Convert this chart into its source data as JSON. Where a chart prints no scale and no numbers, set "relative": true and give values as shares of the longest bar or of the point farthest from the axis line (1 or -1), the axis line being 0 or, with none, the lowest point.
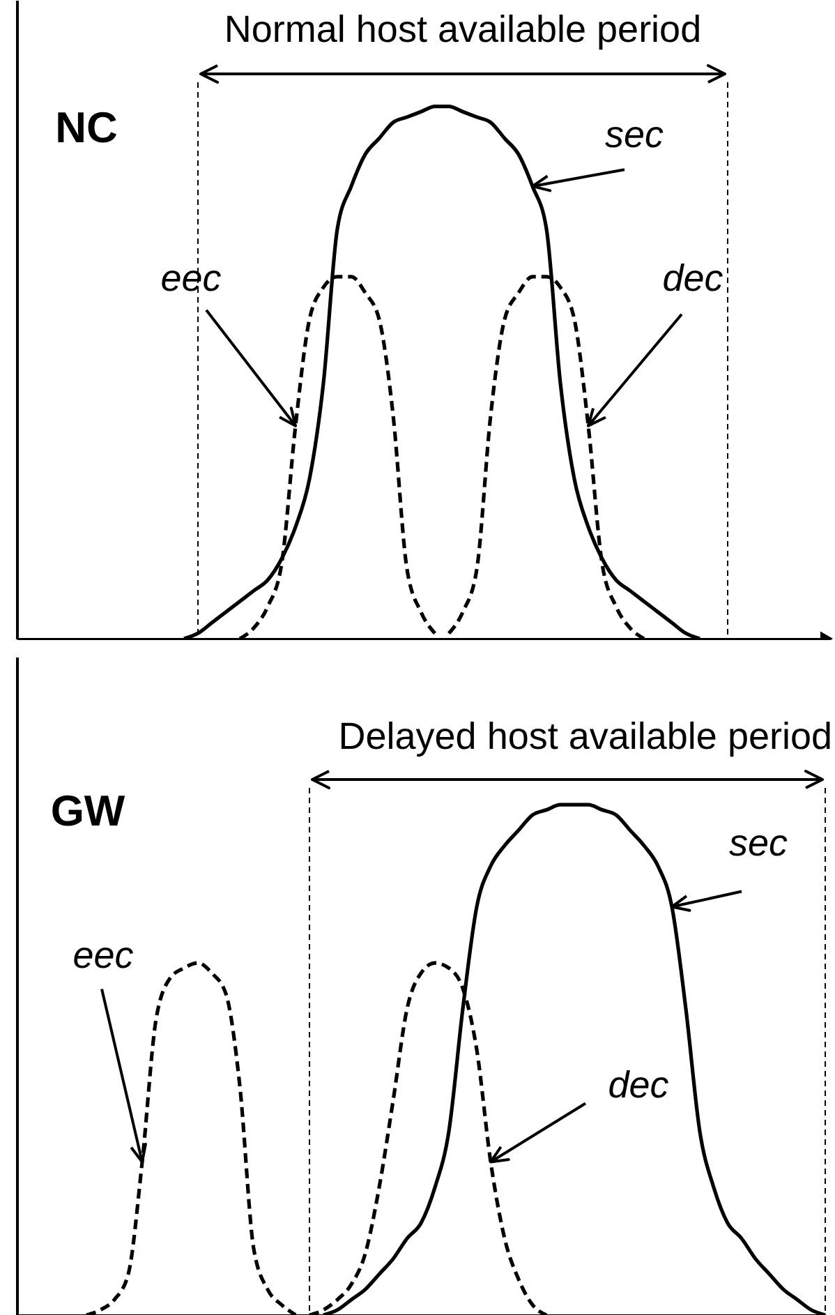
{
  "chart_data": [
    {
      "type": "line",
      "title": "NC",
      "relative": true,
      "categories": [
        null,
        null,
        null,
        null,
        null,
        null,
        null,
        null,
        null,
        null,
        null,
        null,
        null,
        null,
        null,
        null,
        null,
        null,
        null,
        null,
        null,
        null,
        null,
        null,
        null,
        null,
        null,
        null,
        null,
        null,
        null,
        null,
        null,
        null,
        null,
        null,
        null,
        null,
        null,
        null,
        null,
        null,
        null,
        null,
        null,
        null,
        null,
        null,
        null,
        null,
        null,
        null,
        null,
        null,
        null,
        null,
        null,
        null,
        null
      ],
      "series": [
        {
          "name": "sec",
          "color": "#000000",
          "line_style": "solid",
          "values": [
            null,
            null,
            null,
            null,
            null,
            null,
            null,
            null,
            null,
            null,
            null,
            null,
            0,
            0.01,
            0.03,
            0.05,
            0.07,
            0.09,
            0.11,
            0.15,
            0.21,
            0.3,
            0.48,
            0.77,
            0.85,
            0.91,
            0.94,
            0.97,
            0.98,
            0.99,
            1,
            1,
            0.99,
            0.98,
            0.97,
            0.94,
            0.91,
            0.85,
            0.77,
            0.48,
            0.3,
            0.21,
            0.15,
            0.11,
            0.09,
            0.07,
            0.05,
            0.03,
            0.01,
            0,
            null,
            null,
            null,
            null,
            null,
            null,
            null,
            null,
            null
          ]
        },
        {
          "name": "eec",
          "color": "#000000",
          "line_style": "dashed",
          "values": [
            null,
            null,
            null,
            null,
            null,
            null,
            null,
            null,
            null,
            null,
            null,
            null,
            null,
            null,
            null,
            null,
            0,
            0.02,
            0.06,
            0.14,
            0.4,
            0.6,
            0.66,
            0.68,
            0.68,
            0.65,
            0.6,
            0.42,
            0.13,
            0.05,
            0.01,
            null,
            null,
            null,
            null,
            null,
            null,
            null,
            null,
            null,
            null,
            null,
            null,
            null,
            null,
            null,
            null,
            null,
            null,
            null,
            null,
            null,
            null,
            null,
            null,
            null,
            null,
            null,
            null
          ]
        },
        {
          "name": "dec",
          "color": "#000000",
          "line_style": "dashed",
          "values": [
            null,
            null,
            null,
            null,
            null,
            null,
            null,
            null,
            null,
            null,
            null,
            null,
            null,
            null,
            null,
            null,
            null,
            null,
            null,
            null,
            null,
            null,
            null,
            null,
            null,
            null,
            null,
            null,
            null,
            null,
            null,
            0.01,
            0.05,
            0.13,
            0.42,
            0.6,
            0.65,
            0.68,
            0.68,
            0.66,
            0.6,
            0.4,
            0.14,
            0.06,
            0.02,
            0,
            null,
            null,
            null,
            null,
            null,
            null,
            null,
            null,
            null,
            null,
            null,
            null,
            null
          ]
        }
      ],
      "annotations": [
        "Normal host available period"
      ]
    },
    {
      "type": "line",
      "title": "GW",
      "relative": true,
      "categories": [
        null,
        null,
        null,
        null,
        null,
        null,
        null,
        null,
        null,
        null,
        null,
        null,
        null,
        null,
        null,
        null,
        null,
        null,
        null,
        null,
        null,
        null,
        null,
        null,
        null,
        null,
        null,
        null,
        null,
        null,
        null,
        null,
        null,
        null,
        null,
        null,
        null,
        null,
        null,
        null,
        null,
        null,
        null,
        null,
        null,
        null,
        null,
        null,
        null,
        null,
        null,
        null,
        null,
        null,
        null,
        null,
        null,
        null,
        null
      ],
      "series": [
        {
          "name": "eec",
          "color": "#000000",
          "line_style": "dashed",
          "values": [
            null,
            null,
            null,
            null,
            null,
            0,
            0.01,
            0.03,
            0.08,
            0.3,
            0.58,
            0.66,
            0.68,
            0.69,
            0.67,
            0.63,
            0.45,
            0.13,
            0.05,
            0.02,
            0,
            null,
            null,
            null,
            null,
            null,
            null,
            null,
            null,
            null,
            null,
            null,
            null,
            null,
            null,
            null,
            null,
            null,
            null,
            null,
            null,
            null,
            null,
            null,
            null,
            null,
            null,
            null,
            null,
            null,
            null,
            null,
            null,
            null,
            null,
            null,
            null,
            null,
            null
          ]
        },
        {
          "name": "dec",
          "color": "#000000",
          "line_style": "dashed",
          "values": [
            null,
            null,
            null,
            null,
            null,
            null,
            null,
            null,
            null,
            null,
            null,
            null,
            null,
            null,
            null,
            null,
            null,
            null,
            null,
            null,
            null,
            0,
            0.01,
            0.03,
            0.06,
            0.12,
            0.25,
            0.42,
            0.6,
            0.67,
            0.69,
            0.68,
            0.64,
            0.52,
            0.3,
            0.15,
            0.07,
            0.02,
            0,
            null,
            null,
            null,
            null,
            null,
            null,
            null,
            null,
            null,
            null,
            null,
            null,
            null,
            null,
            null,
            null,
            null,
            null,
            null,
            null
          ]
        },
        {
          "name": "sec",
          "color": "#000000",
          "line_style": "solid",
          "values": [
            null,
            null,
            null,
            null,
            null,
            null,
            null,
            null,
            null,
            null,
            null,
            null,
            null,
            null,
            null,
            null,
            null,
            null,
            null,
            null,
            null,
            null,
            0,
            0.01,
            0.03,
            0.05,
            0.08,
            0.11,
            0.15,
            0.18,
            0.25,
            0.36,
            0.6,
            0.8,
            0.88,
            0.92,
            0.95,
            0.98,
            0.99,
            1,
            1,
            1,
            0.99,
            0.98,
            0.95,
            0.92,
            0.88,
            0.8,
            0.6,
            0.36,
            0.25,
            0.18,
            0.15,
            0.11,
            0.08,
            0.05,
            0.03,
            0.01,
            0
          ]
        }
      ],
      "annotations": [
        "Delayed host available period"
      ]
    }
  ]
}
